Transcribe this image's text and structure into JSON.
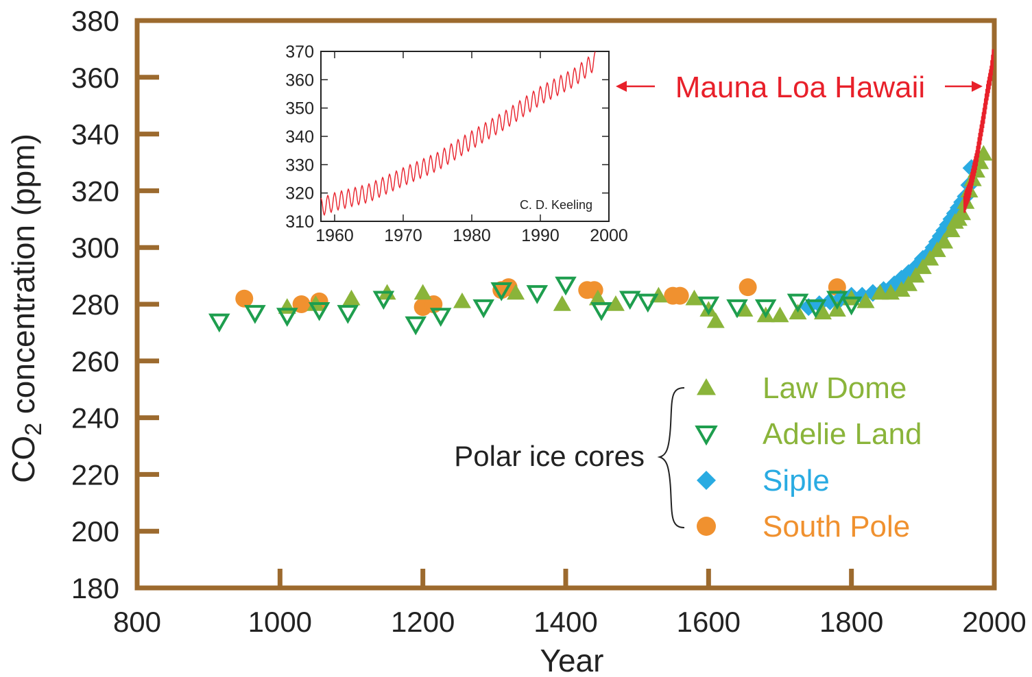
{
  "chart_data": [
    {
      "type": "scatter",
      "xlabel": "Year",
      "ylabel_parts": {
        "pre": "CO",
        "sub": "2",
        "post": " concentration (ppm)"
      },
      "xlim": [
        800,
        2000
      ],
      "ylim": [
        180,
        380
      ],
      "x_ticks": [
        800,
        1000,
        1200,
        1400,
        1600,
        1800,
        2000
      ],
      "y_ticks": [
        180,
        200,
        220,
        240,
        260,
        280,
        300,
        320,
        340,
        360,
        380
      ],
      "grid": false,
      "legend_position": "bottom-right",
      "legend_group_label": "Polar ice cores",
      "annotation": "Mauna Loa Hawaii",
      "colors": {
        "frame": "#9c6a2e",
        "law_dome": "#8ab43a",
        "adelie_land": "#1e9e4e",
        "siple": "#29abe2",
        "south_pole": "#f0912f",
        "mauna_loa": "#e8202a"
      },
      "series": [
        {
          "name": "Law Dome",
          "marker": "triangle-up",
          "points": [
            [
              1010,
              279
            ],
            [
              1050,
              280
            ],
            [
              1100,
              282
            ],
            [
              1150,
              284
            ],
            [
              1200,
              284
            ],
            [
              1255,
              281
            ],
            [
              1330,
              284
            ],
            [
              1395,
              280
            ],
            [
              1445,
              282
            ],
            [
              1470,
              280
            ],
            [
              1530,
              283
            ],
            [
              1580,
              282
            ],
            [
              1600,
              278
            ],
            [
              1610,
              274
            ],
            [
              1650,
              278
            ],
            [
              1680,
              276
            ],
            [
              1700,
              276
            ],
            [
              1725,
              277
            ],
            [
              1760,
              277
            ],
            [
              1780,
              278
            ],
            [
              1800,
              282
            ],
            [
              1820,
              281
            ],
            [
              1840,
              284
            ],
            [
              1855,
              284
            ],
            [
              1870,
              285
            ],
            [
              1880,
              287
            ],
            [
              1890,
              290
            ],
            [
              1900,
              293
            ],
            [
              1910,
              296
            ],
            [
              1920,
              299
            ],
            [
              1930,
              302
            ],
            [
              1940,
              306
            ],
            [
              1945,
              309
            ],
            [
              1950,
              310
            ],
            [
              1955,
              312
            ],
            [
              1960,
              316
            ],
            [
              1965,
              320
            ],
            [
              1970,
              324
            ],
            [
              1975,
              327
            ],
            [
              1980,
              330
            ],
            [
              1985,
              333
            ]
          ]
        },
        {
          "name": "Adelie Land",
          "marker": "triangle-down",
          "points": [
            [
              915,
              274
            ],
            [
              965,
              277
            ],
            [
              1010,
              276
            ],
            [
              1055,
              278
            ],
            [
              1095,
              277
            ],
            [
              1145,
              282
            ],
            [
              1190,
              273
            ],
            [
              1225,
              276
            ],
            [
              1285,
              279
            ],
            [
              1310,
              285
            ],
            [
              1360,
              284
            ],
            [
              1400,
              287
            ],
            [
              1450,
              278
            ],
            [
              1490,
              282
            ],
            [
              1515,
              281
            ],
            [
              1600,
              280
            ],
            [
              1640,
              279
            ],
            [
              1680,
              279
            ],
            [
              1725,
              281
            ],
            [
              1750,
              279
            ],
            [
              1780,
              282
            ],
            [
              1800,
              280
            ]
          ]
        },
        {
          "name": "Siple",
          "marker": "diamond",
          "points": [
            [
              1740,
              279
            ],
            [
              1755,
              280
            ],
            [
              1770,
              281
            ],
            [
              1785,
              282
            ],
            [
              1800,
              283
            ],
            [
              1815,
              283
            ],
            [
              1830,
              284
            ],
            [
              1845,
              285
            ],
            [
              1860,
              287
            ],
            [
              1870,
              289
            ],
            [
              1880,
              291
            ],
            [
              1890,
              293
            ],
            [
              1900,
              296
            ],
            [
              1910,
              298
            ],
            [
              1915,
              300
            ],
            [
              1920,
              302
            ],
            [
              1925,
              304
            ],
            [
              1930,
              306
            ],
            [
              1935,
              308
            ],
            [
              1940,
              310
            ],
            [
              1945,
              312
            ],
            [
              1950,
              314
            ],
            [
              1955,
              316
            ],
            [
              1960,
              318
            ],
            [
              1965,
              322
            ],
            [
              1968,
              328
            ]
          ]
        },
        {
          "name": "South Pole",
          "marker": "circle",
          "points": [
            [
              950,
              282
            ],
            [
              1030,
              280
            ],
            [
              1055,
              281
            ],
            [
              1200,
              279
            ],
            [
              1215,
              280
            ],
            [
              1310,
              285
            ],
            [
              1320,
              286
            ],
            [
              1430,
              285
            ],
            [
              1440,
              285
            ],
            [
              1550,
              283
            ],
            [
              1560,
              283
            ],
            [
              1655,
              286
            ],
            [
              1780,
              286
            ]
          ]
        }
      ]
    },
    {
      "type": "line",
      "name": "Mauna Loa inset",
      "annotation": "C. D. Keeling",
      "xlim": [
        1958,
        2000
      ],
      "ylim": [
        310,
        370
      ],
      "x_ticks": [
        1960,
        1970,
        1980,
        1990,
        2000
      ],
      "y_ticks": [
        310,
        320,
        330,
        340,
        350,
        360,
        370
      ],
      "trend": [
        [
          1958,
          315.0
        ],
        [
          1960,
          316.9
        ],
        [
          1965,
          320.0
        ],
        [
          1970,
          325.7
        ],
        [
          1975,
          331.1
        ],
        [
          1980,
          338.7
        ],
        [
          1985,
          346.0
        ],
        [
          1990,
          354.4
        ],
        [
          1995,
          360.9
        ],
        [
          1998,
          366.7
        ]
      ],
      "seasonal_amplitude_ppm": 3.2
    }
  ]
}
